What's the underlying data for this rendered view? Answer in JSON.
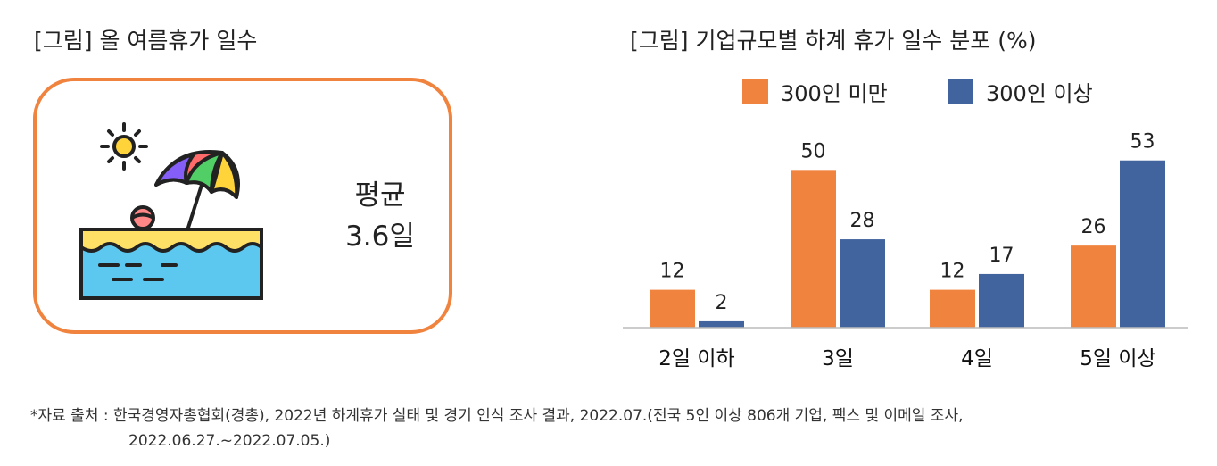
{
  "left": {
    "title": "[그림] 올 여름휴가 일수",
    "avg_label": "평균",
    "avg_value": "3.6일",
    "icon": "beach-umbrella-icon",
    "border_color": "#F0843F"
  },
  "right": {
    "title": "[그림] 기업규모별 하계 휴가 일수 분포 (%)"
  },
  "legend": [
    {
      "label": "300인 미만",
      "color": "#F0843F"
    },
    {
      "label": "300인 이상",
      "color": "#41639E"
    }
  ],
  "chart_data": {
    "type": "bar",
    "title": "[그림] 기업규모별 하계 휴가 일수 분포 (%)",
    "categories": [
      "2일 이하",
      "3일",
      "4일",
      "5일 이상"
    ],
    "series": [
      {
        "name": "300인 미만",
        "color": "#F0843F",
        "values": [
          12,
          50,
          12,
          26
        ]
      },
      {
        "name": "300인 이상",
        "color": "#41639E",
        "values": [
          2,
          28,
          17,
          53
        ]
      }
    ],
    "ylim": [
      0,
      60
    ],
    "grid": false,
    "legend_position": "top"
  },
  "source": {
    "line1": "*자료 출처 : 한국경영자총협회(경총), 2022년 하계휴가 실태 및 경기 인식 조사 결과, 2022.07.(전국 5인 이상 806개 기업, 팩스 및 이메일 조사,",
    "line2": "2022.06.27.~2022.07.05.)"
  }
}
